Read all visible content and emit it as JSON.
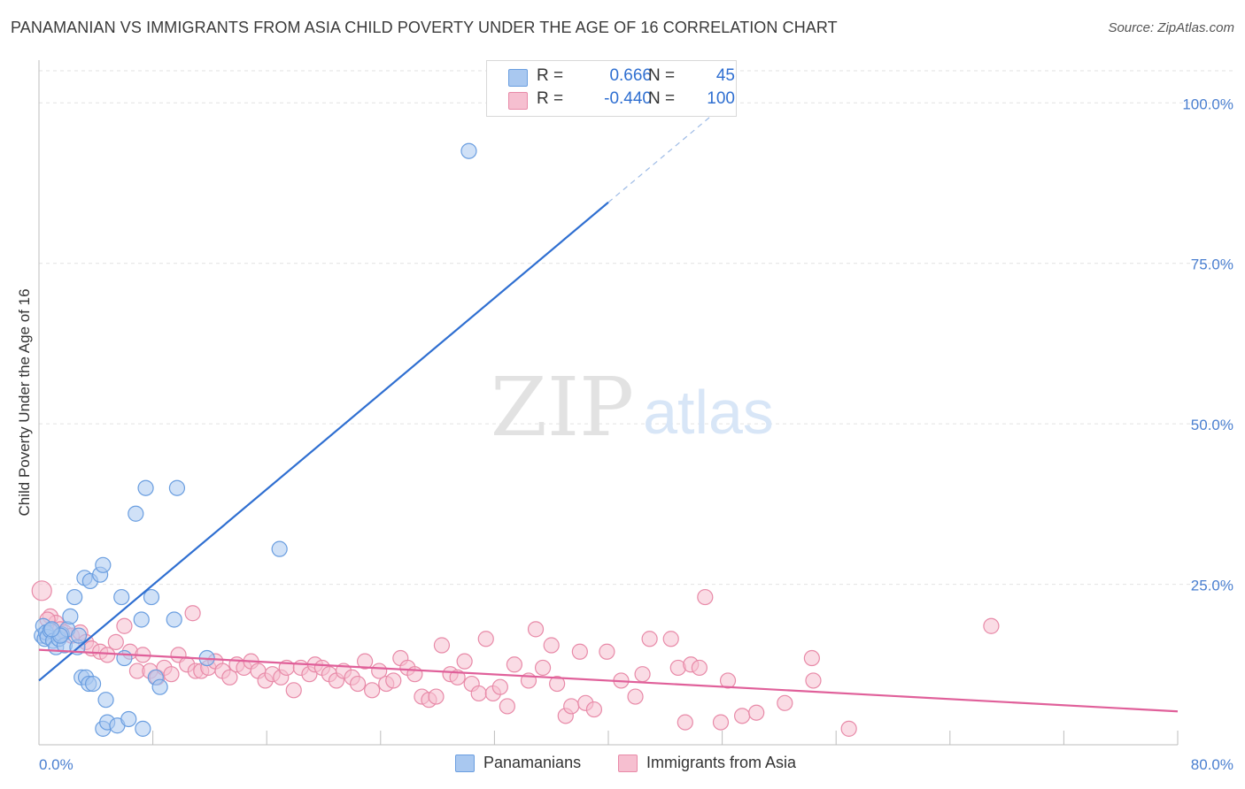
{
  "title": "PANAMANIAN VS IMMIGRANTS FROM ASIA CHILD POVERTY UNDER THE AGE OF 16 CORRELATION CHART",
  "source": "Source: ZipAtlas.com",
  "watermark": {
    "zip": "ZIP",
    "atlas": "atlas"
  },
  "legend": {
    "r_label": "R =",
    "n_label": "N =",
    "rows": [
      {
        "r": "0.666",
        "n": "45",
        "fill": "#a9c8f0",
        "stroke": "#6a9ee0"
      },
      {
        "r": "-0.440",
        "n": "100",
        "fill": "#f6bfd0",
        "stroke": "#e88aa8"
      }
    ]
  },
  "bottom_legend": [
    {
      "label": "Panamanians",
      "fill": "#a9c8f0",
      "stroke": "#6a9ee0"
    },
    {
      "label": "Immigrants from Asia",
      "fill": "#f6bfd0",
      "stroke": "#e88aa8"
    }
  ],
  "colors": {
    "blue": "#2f6fd1",
    "pink": "#e0609a",
    "tick_text": "#4a7fd0",
    "grid": "#e2e2e2"
  },
  "chart_data": {
    "type": "scatter",
    "title": "PANAMANIAN VS IMMIGRANTS FROM ASIA CHILD POVERTY UNDER THE AGE OF 16 CORRELATION CHART",
    "xlabel": "",
    "ylabel": "Child Poverty Under the Age of 16",
    "xlim": [
      0,
      80
    ],
    "ylim": [
      0,
      105
    ],
    "x_tick_labels": [
      {
        "value": 0,
        "label": "0.0%"
      },
      {
        "value": 80,
        "label": "80.0%"
      }
    ],
    "y_tick_labels": [
      {
        "value": 25,
        "label": "25.0%"
      },
      {
        "value": 50,
        "label": "50.0%"
      },
      {
        "value": 75,
        "label": "75.0%"
      },
      {
        "value": 100,
        "label": "100.0%"
      }
    ],
    "grid": true,
    "series": [
      {
        "name": "Panamanians",
        "color": "#6a9ee0",
        "r": 0.666,
        "n": 45,
        "trend": {
          "x0": 0,
          "y0": 10.0,
          "x1": 40,
          "y1": 84.5,
          "dashed_to_x": 48
        },
        "points": [
          [
            0.2,
            17.0
          ],
          [
            0.3,
            18.5
          ],
          [
            0.4,
            16.5
          ],
          [
            0.5,
            17.5
          ],
          [
            0.6,
            16.8
          ],
          [
            0.8,
            17.8
          ],
          [
            1.0,
            16.2
          ],
          [
            1.2,
            15.2
          ],
          [
            1.4,
            16.5
          ],
          [
            1.6,
            17.2
          ],
          [
            1.8,
            15.5
          ],
          [
            2.0,
            18.0
          ],
          [
            2.2,
            20.0
          ],
          [
            2.5,
            23.0
          ],
          [
            2.7,
            15.2
          ],
          [
            2.8,
            17.0
          ],
          [
            3.0,
            10.5
          ],
          [
            3.2,
            26.0
          ],
          [
            3.3,
            10.5
          ],
          [
            3.5,
            9.5
          ],
          [
            3.6,
            25.5
          ],
          [
            3.8,
            9.5
          ],
          [
            4.3,
            26.5
          ],
          [
            4.5,
            28.0
          ],
          [
            4.5,
            2.5
          ],
          [
            4.7,
            7.0
          ],
          [
            4.8,
            3.5
          ],
          [
            5.5,
            3.0
          ],
          [
            5.8,
            23.0
          ],
          [
            6.0,
            13.5
          ],
          [
            6.3,
            4.0
          ],
          [
            6.8,
            36.0
          ],
          [
            7.2,
            19.5
          ],
          [
            7.3,
            2.5
          ],
          [
            7.5,
            40.0
          ],
          [
            7.9,
            23.0
          ],
          [
            8.2,
            10.5
          ],
          [
            8.5,
            9.0
          ],
          [
            9.5,
            19.5
          ],
          [
            9.7,
            40.0
          ],
          [
            11.8,
            13.5
          ],
          [
            16.9,
            30.5
          ],
          [
            30.2,
            92.5
          ],
          [
            1.5,
            17.0
          ],
          [
            0.9,
            18.0
          ]
        ]
      },
      {
        "name": "Immigrants from Asia",
        "color": "#e88aa8",
        "r": -0.44,
        "n": 100,
        "trend": {
          "x0": 0,
          "y0": 14.8,
          "x1": 80,
          "y1": 5.2
        },
        "points": [
          [
            0.2,
            24.0
          ],
          [
            0.8,
            20.0
          ],
          [
            1.2,
            19.0
          ],
          [
            1.5,
            18.0
          ],
          [
            1.8,
            17.5
          ],
          [
            2.3,
            17.0
          ],
          [
            2.9,
            17.5
          ],
          [
            3.3,
            16.0
          ],
          [
            3.7,
            15.0
          ],
          [
            4.3,
            14.5
          ],
          [
            4.8,
            14.0
          ],
          [
            5.4,
            16.0
          ],
          [
            6.0,
            18.5
          ],
          [
            6.4,
            14.5
          ],
          [
            6.9,
            11.5
          ],
          [
            7.3,
            14.0
          ],
          [
            7.8,
            11.5
          ],
          [
            8.3,
            10.5
          ],
          [
            8.8,
            12.0
          ],
          [
            9.3,
            11.0
          ],
          [
            9.8,
            14.0
          ],
          [
            10.4,
            12.5
          ],
          [
            10.8,
            20.5
          ],
          [
            11.0,
            11.5
          ],
          [
            11.4,
            11.5
          ],
          [
            11.9,
            12.0
          ],
          [
            12.4,
            13.0
          ],
          [
            12.9,
            11.5
          ],
          [
            13.4,
            10.5
          ],
          [
            13.9,
            12.5
          ],
          [
            14.4,
            12.0
          ],
          [
            14.9,
            13.0
          ],
          [
            15.4,
            11.5
          ],
          [
            15.9,
            10.0
          ],
          [
            16.4,
            11.0
          ],
          [
            17.0,
            10.5
          ],
          [
            17.4,
            12.0
          ],
          [
            17.9,
            8.5
          ],
          [
            18.4,
            12.0
          ],
          [
            19.0,
            11.0
          ],
          [
            19.4,
            12.5
          ],
          [
            19.9,
            12.0
          ],
          [
            20.4,
            11.0
          ],
          [
            20.9,
            10.0
          ],
          [
            21.4,
            11.5
          ],
          [
            22.0,
            10.5
          ],
          [
            22.4,
            9.5
          ],
          [
            22.9,
            13.0
          ],
          [
            23.4,
            8.5
          ],
          [
            23.9,
            11.5
          ],
          [
            24.4,
            9.5
          ],
          [
            24.9,
            10.0
          ],
          [
            25.4,
            13.5
          ],
          [
            25.9,
            12.0
          ],
          [
            26.4,
            11.0
          ],
          [
            26.9,
            7.5
          ],
          [
            27.4,
            7.0
          ],
          [
            27.9,
            7.5
          ],
          [
            28.3,
            15.5
          ],
          [
            28.9,
            11.0
          ],
          [
            29.4,
            10.5
          ],
          [
            29.9,
            13.0
          ],
          [
            30.4,
            9.5
          ],
          [
            30.9,
            8.0
          ],
          [
            31.4,
            16.5
          ],
          [
            31.9,
            8.0
          ],
          [
            32.4,
            9.0
          ],
          [
            32.9,
            6.0
          ],
          [
            33.4,
            12.5
          ],
          [
            34.4,
            10.0
          ],
          [
            34.9,
            18.0
          ],
          [
            35.4,
            12.0
          ],
          [
            36.0,
            15.5
          ],
          [
            36.4,
            9.5
          ],
          [
            37.0,
            4.5
          ],
          [
            37.4,
            6.0
          ],
          [
            38.0,
            14.5
          ],
          [
            38.4,
            6.5
          ],
          [
            39.0,
            5.5
          ],
          [
            39.9,
            14.5
          ],
          [
            40.9,
            10.0
          ],
          [
            41.9,
            7.5
          ],
          [
            42.4,
            11.0
          ],
          [
            42.9,
            16.5
          ],
          [
            44.4,
            16.5
          ],
          [
            44.9,
            12.0
          ],
          [
            45.4,
            3.5
          ],
          [
            45.8,
            12.5
          ],
          [
            46.4,
            12.0
          ],
          [
            46.8,
            23.0
          ],
          [
            47.9,
            3.5
          ],
          [
            48.4,
            10.0
          ],
          [
            49.4,
            4.5
          ],
          [
            50.4,
            5.0
          ],
          [
            52.4,
            6.5
          ],
          [
            54.3,
            13.5
          ],
          [
            54.4,
            10.0
          ],
          [
            56.9,
            2.5
          ],
          [
            66.9,
            18.5
          ],
          [
            0.6,
            19.5
          ]
        ]
      }
    ]
  }
}
